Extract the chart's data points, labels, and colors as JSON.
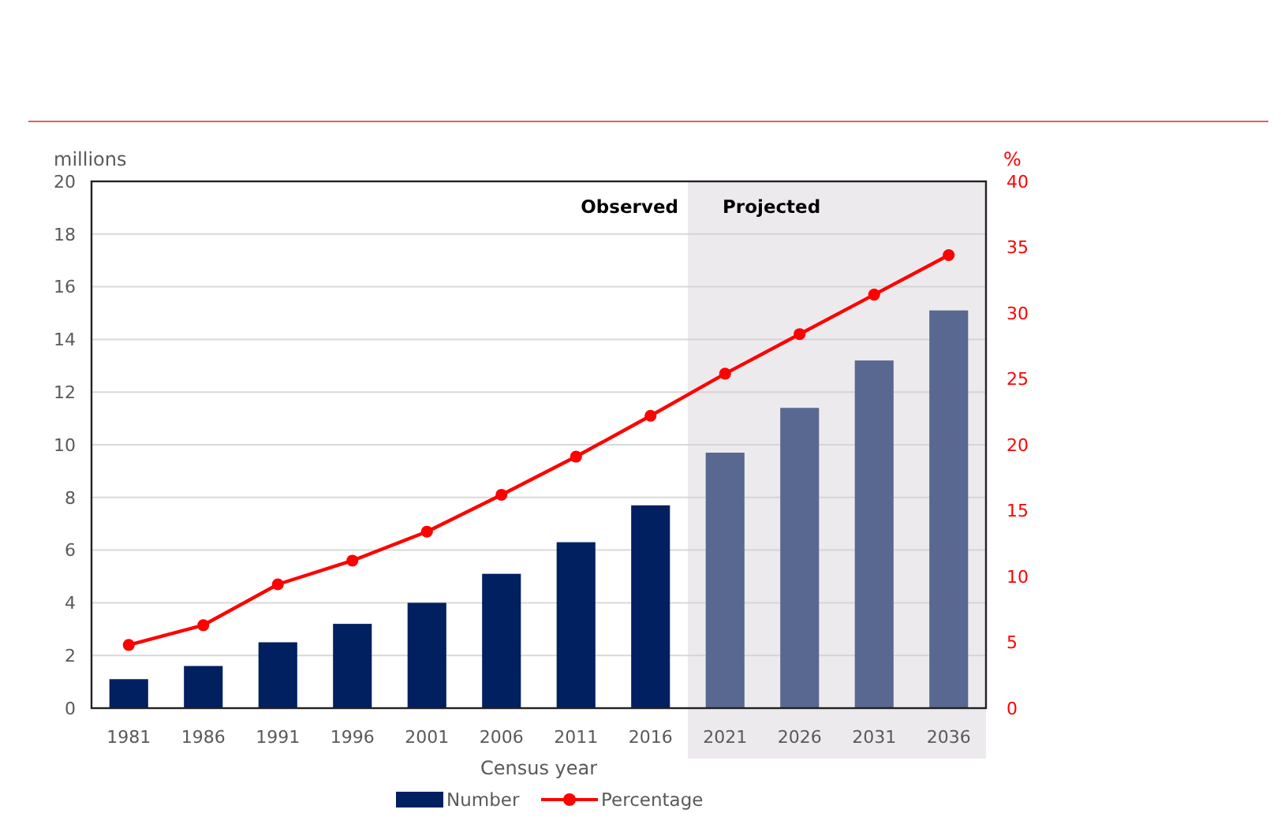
{
  "chart_data": {
    "type": "bar",
    "xlabel": "Census year",
    "ylabel": "millions",
    "y2label": "%",
    "categories": [
      "1981",
      "1986",
      "1991",
      "1996",
      "2001",
      "2006",
      "2011",
      "2016",
      "2021",
      "2026",
      "2031",
      "2036"
    ],
    "series": [
      {
        "name": "Number",
        "color": "#002060",
        "values": [
          1.1,
          1.6,
          2.5,
          3.2,
          4.0,
          5.1,
          6.3,
          7.7,
          9.7,
          11.4,
          13.2,
          15.1
        ]
      },
      {
        "name": "Percentage",
        "type": "line",
        "axis": "y2",
        "color": "#ff0000",
        "marker": "circle",
        "values": [
          4.8,
          6.3,
          9.4,
          11.2,
          13.4,
          16.2,
          19.1,
          22.2,
          25.4,
          28.4,
          31.4,
          34.4
        ]
      }
    ],
    "ylim": [
      0,
      20
    ],
    "yticks": [
      0,
      2,
      4,
      6,
      8,
      10,
      12,
      14,
      16,
      18,
      20
    ],
    "y2lim": [
      0,
      40
    ],
    "y2ticks": [
      0,
      5,
      10,
      15,
      20,
      25,
      30,
      35,
      40
    ],
    "bands": [
      {
        "axis": "x",
        "from": "2021",
        "to": "2036",
        "label": "Projected",
        "color": "#d3cdd3"
      }
    ],
    "annotations": [
      "Observed"
    ],
    "grid": "y",
    "legend": "bottom"
  }
}
